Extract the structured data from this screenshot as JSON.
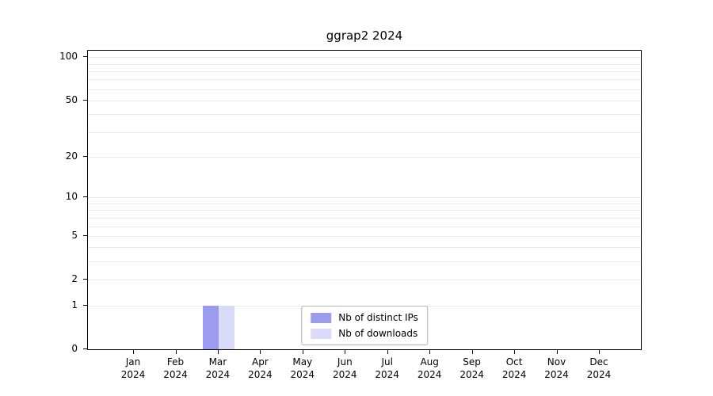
{
  "chart_data": {
    "type": "bar",
    "title": "ggrap2 2024",
    "categories": [
      {
        "month": "Jan",
        "year": "2024"
      },
      {
        "month": "Feb",
        "year": "2024"
      },
      {
        "month": "Mar",
        "year": "2024"
      },
      {
        "month": "Apr",
        "year": "2024"
      },
      {
        "month": "May",
        "year": "2024"
      },
      {
        "month": "Jun",
        "year": "2024"
      },
      {
        "month": "Jul",
        "year": "2024"
      },
      {
        "month": "Aug",
        "year": "2024"
      },
      {
        "month": "Sep",
        "year": "2024"
      },
      {
        "month": "Oct",
        "year": "2024"
      },
      {
        "month": "Nov",
        "year": "2024"
      },
      {
        "month": "Dec",
        "year": "2024"
      }
    ],
    "series": [
      {
        "name": "Nb of distinct IPs",
        "color": "#9b9bef",
        "values": [
          0,
          0,
          1,
          0,
          0,
          0,
          0,
          0,
          0,
          0,
          0,
          0
        ]
      },
      {
        "name": "Nb of downloads",
        "color": "#dadaf9",
        "values": [
          0,
          0,
          1,
          0,
          0,
          0,
          0,
          0,
          0,
          0,
          0,
          0
        ]
      }
    ],
    "yscale": "log1p",
    "ylim": [
      0,
      111
    ],
    "yticks": [
      0,
      1,
      2,
      5,
      10,
      20,
      50,
      100
    ],
    "minor_yticks": [
      3,
      4,
      6,
      7,
      8,
      9,
      30,
      40,
      60,
      70,
      80,
      90
    ],
    "grid": "horizontal",
    "legend_position": "bottom-center"
  },
  "colors": {
    "axis": "#000000",
    "grid": "#eaeaea",
    "text": "#000000",
    "background": "#ffffff",
    "legend_border": "#b3b3b3"
  }
}
